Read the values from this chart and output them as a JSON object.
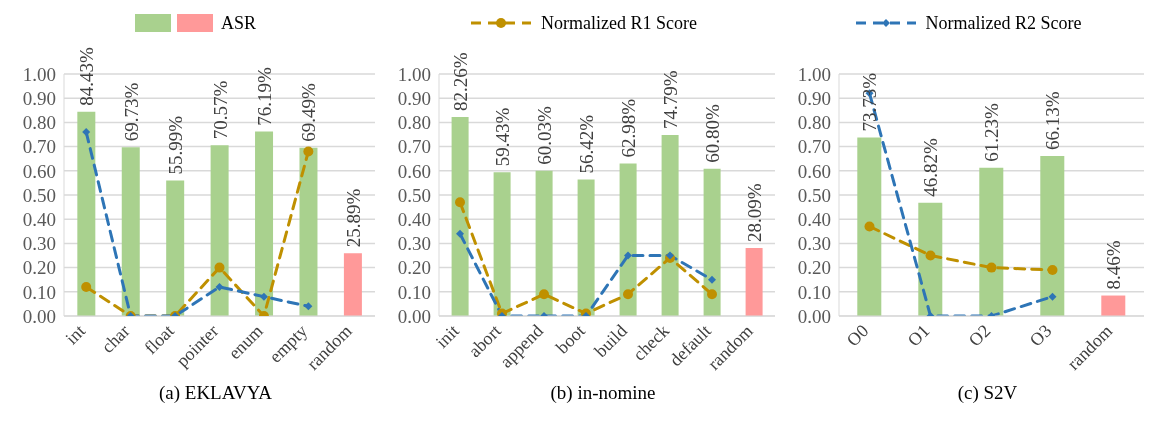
{
  "chart_data": [
    {
      "type": "bar",
      "title": "(a) EKLAVYA",
      "categories": [
        "int",
        "char",
        "float",
        "pointer",
        "enum",
        "empty",
        "random"
      ],
      "series": [
        {
          "name": "ASR",
          "colors": [
            "#a9d18e",
            "#a9d18e",
            "#a9d18e",
            "#a9d18e",
            "#a9d18e",
            "#a9d18e",
            "#ff9999"
          ],
          "values": [
            0.8443,
            0.6973,
            0.5599,
            0.7057,
            0.7619,
            0.6949,
            0.2589
          ],
          "value_labels": [
            "84.43%",
            "69.73%",
            "55.99%",
            "70.57%",
            "76.19%",
            "69.49%",
            "25.89%"
          ]
        },
        {
          "type": "line",
          "color": "#bf9000",
          "marker": "circle",
          "line_style": "dashed",
          "values": [
            0.12,
            0,
            0,
            0.2,
            0,
            0.68,
            null
          ]
        },
        {
          "type": "line",
          "color": "#2e75b6",
          "marker": "diamond",
          "line_style": "dashed",
          "values": [
            0.76,
            0,
            0,
            0.12,
            0.08,
            0.04,
            null
          ]
        }
      ],
      "ylim": [
        0,
        1
      ],
      "yticks": [
        {
          "value": 0,
          "label": "0.00"
        },
        {
          "value": 0.1,
          "label": "0.10"
        },
        {
          "value": 0.2,
          "label": "0.20"
        },
        {
          "value": 0.3,
          "label": "0.30"
        },
        {
          "value": 0.4,
          "label": "0.40"
        },
        {
          "value": 0.5,
          "label": "0.50"
        },
        {
          "value": 0.6,
          "label": "0.60"
        },
        {
          "value": 0.7,
          "label": "0.70"
        },
        {
          "value": 0.8,
          "label": "0.80"
        },
        {
          "value": 0.9,
          "label": "0.90"
        },
        {
          "value": 1,
          "label": "1.00"
        }
      ],
      "grid": "y",
      "legend": "top"
    },
    {
      "type": "bar",
      "title": "(b) in-nomine",
      "categories": [
        "init",
        "abort",
        "append",
        "boot",
        "build",
        "check",
        "default",
        "random"
      ],
      "series": [
        {
          "colors": [
            "#a9d18e",
            "#a9d18e",
            "#a9d18e",
            "#a9d18e",
            "#a9d18e",
            "#a9d18e",
            "#a9d18e",
            "#ff9999"
          ],
          "values": [
            0.8226,
            0.5943,
            0.6003,
            0.5642,
            0.6298,
            0.7479,
            0.608,
            0.2809
          ],
          "value_labels": [
            "82.26%",
            "59.43%",
            "60.03%",
            "56.42%",
            "62.98%",
            "74.79%",
            "60.80%",
            "28.09%"
          ]
        },
        {
          "name": "Normalized R1 Score",
          "type": "line",
          "color": "#bf9000",
          "marker": "circle",
          "line_style": "dashed",
          "values": [
            0.47,
            0.01,
            0.09,
            0.01,
            0.09,
            0.24,
            0.09,
            null
          ]
        },
        {
          "type": "line",
          "color": "#2e75b6",
          "marker": "diamond",
          "line_style": "dashed",
          "values": [
            0.34,
            0,
            0,
            0,
            0.25,
            0.25,
            0.15,
            null
          ]
        }
      ],
      "ylim": [
        0,
        1
      ],
      "yticks": [
        {
          "value": 0,
          "label": "0.00"
        },
        {
          "value": 0.1,
          "label": "0.10"
        },
        {
          "value": 0.2,
          "label": "0.20"
        },
        {
          "value": 0.3,
          "label": "0.30"
        },
        {
          "value": 0.4,
          "label": "0.40"
        },
        {
          "value": 0.5,
          "label": "0.50"
        },
        {
          "value": 0.6,
          "label": "0.60"
        },
        {
          "value": 0.7,
          "label": "0.70"
        },
        {
          "value": 0.8,
          "label": "0.80"
        },
        {
          "value": 0.9,
          "label": "0.90"
        },
        {
          "value": 1,
          "label": "1.00"
        }
      ],
      "grid": "y",
      "legend": "top"
    },
    {
      "type": "bar",
      "title": "(c) S2V",
      "categories": [
        "O0",
        "O1",
        "O2",
        "O3",
        "random"
      ],
      "series": [
        {
          "colors": [
            "#a9d18e",
            "#a9d18e",
            "#a9d18e",
            "#a9d18e",
            "#ff9999"
          ],
          "values": [
            0.7373,
            0.4682,
            0.6123,
            0.6613,
            0.0846
          ],
          "value_labels": [
            "73.73%",
            "46.82%",
            "61.23%",
            "66.13%",
            "8.46%"
          ]
        },
        {
          "type": "line",
          "color": "#bf9000",
          "marker": "circle",
          "line_style": "dashed",
          "values": [
            0.37,
            0.25,
            0.2,
            0.19,
            null
          ]
        },
        {
          "name": "Normalized R2 Score",
          "type": "line",
          "color": "#2e75b6",
          "marker": "diamond",
          "line_style": "dashed",
          "values": [
            0.92,
            0,
            0,
            0.08,
            null
          ]
        }
      ],
      "ylim": [
        0,
        1
      ],
      "yticks": [
        {
          "value": 0,
          "label": "0.00"
        },
        {
          "value": 0.1,
          "label": "0.10"
        },
        {
          "value": 0.2,
          "label": "0.20"
        },
        {
          "value": 0.3,
          "label": "0.30"
        },
        {
          "value": 0.4,
          "label": "0.40"
        },
        {
          "value": 0.5,
          "label": "0.50"
        },
        {
          "value": 0.6,
          "label": "0.60"
        },
        {
          "value": 0.7,
          "label": "0.70"
        },
        {
          "value": 0.8,
          "label": "0.80"
        },
        {
          "value": 0.9,
          "label": "0.90"
        },
        {
          "value": 1,
          "label": "1.00"
        }
      ],
      "grid": "y",
      "legend": "top"
    }
  ]
}
